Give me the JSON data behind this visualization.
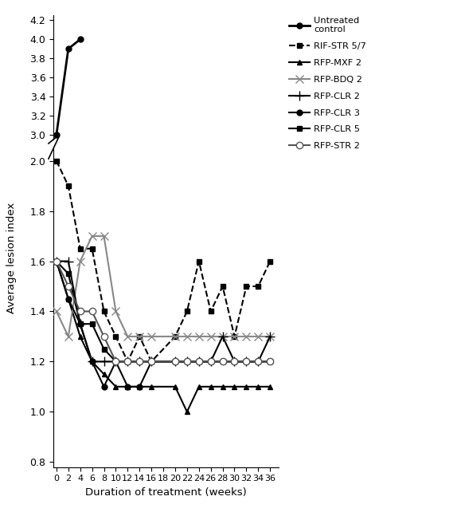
{
  "xlabel": "Duration of treatment (weeks)",
  "ylabel": "Average lesion index",
  "series": [
    {
      "label": "Untreated\ncontrol",
      "x": [
        0,
        2,
        4
      ],
      "y": [
        3.0,
        3.9,
        4.0
      ],
      "color": "#000000",
      "linestyle": "-",
      "linewidth": 2.0,
      "marker": "o",
      "markersize": 5,
      "markerfacecolor": "#000000",
      "markeredgecolor": "#000000",
      "zorder": 10
    },
    {
      "label": "RIF-STR 5/7",
      "x": [
        0,
        2,
        4,
        6,
        8,
        10,
        12,
        14,
        16,
        20,
        22,
        24,
        26,
        28,
        30,
        32,
        34,
        36
      ],
      "y": [
        2.0,
        1.9,
        1.65,
        1.65,
        1.4,
        1.3,
        1.2,
        1.3,
        1.2,
        1.3,
        1.4,
        1.6,
        1.4,
        1.5,
        1.3,
        1.5,
        1.5,
        1.6
      ],
      "color": "#000000",
      "linestyle": "--",
      "linewidth": 1.5,
      "marker": "s",
      "markersize": 5,
      "markerfacecolor": "#000000",
      "markeredgecolor": "#000000",
      "zorder": 5
    },
    {
      "label": "RFP-MXF 2",
      "x": [
        0,
        2,
        4,
        6,
        8,
        10,
        12,
        14,
        16,
        20,
        22,
        24,
        26,
        28,
        30,
        32,
        34,
        36
      ],
      "y": [
        1.6,
        1.45,
        1.3,
        1.2,
        1.15,
        1.1,
        1.1,
        1.1,
        1.1,
        1.1,
        1.0,
        1.1,
        1.1,
        1.1,
        1.1,
        1.1,
        1.1,
        1.1
      ],
      "color": "#000000",
      "linestyle": "-",
      "linewidth": 1.5,
      "marker": "^",
      "markersize": 5,
      "markerfacecolor": "#000000",
      "markeredgecolor": "#000000",
      "zorder": 5
    },
    {
      "label": "RFP-BDQ 2",
      "x": [
        0,
        2,
        4,
        6,
        8,
        10,
        12,
        14,
        16,
        20,
        22,
        24,
        26,
        28,
        30,
        32,
        34,
        36
      ],
      "y": [
        1.4,
        1.3,
        1.6,
        1.7,
        1.7,
        1.4,
        1.3,
        1.3,
        1.3,
        1.3,
        1.3,
        1.3,
        1.3,
        1.3,
        1.3,
        1.3,
        1.3,
        1.3
      ],
      "color": "#888888",
      "linestyle": "-",
      "linewidth": 1.5,
      "marker": "x",
      "markersize": 7,
      "markerfacecolor": "#888888",
      "markeredgecolor": "#888888",
      "zorder": 5
    },
    {
      "label": "RFP-CLR 2",
      "x": [
        0,
        2,
        4,
        6,
        8,
        10,
        12,
        14,
        16,
        20,
        22,
        24,
        26,
        28,
        30,
        32,
        34,
        36
      ],
      "y": [
        1.6,
        1.6,
        1.35,
        1.2,
        1.2,
        1.2,
        1.2,
        1.2,
        1.2,
        1.2,
        1.2,
        1.2,
        1.2,
        1.3,
        1.2,
        1.2,
        1.2,
        1.3
      ],
      "color": "#000000",
      "linestyle": "-",
      "linewidth": 1.5,
      "marker": "+",
      "markersize": 8,
      "markerfacecolor": "#000000",
      "markeredgecolor": "#000000",
      "zorder": 5
    },
    {
      "label": "RFP-CLR 3",
      "x": [
        0,
        2,
        4,
        6,
        8,
        10,
        12,
        14,
        16,
        20,
        22,
        24,
        26,
        28,
        30,
        32,
        34,
        36
      ],
      "y": [
        1.6,
        1.45,
        1.35,
        1.2,
        1.1,
        1.2,
        1.1,
        1.1,
        1.2,
        1.2,
        1.2,
        1.2,
        1.2,
        1.2,
        1.2,
        1.2,
        1.2,
        1.2
      ],
      "color": "#000000",
      "linestyle": "-",
      "linewidth": 1.5,
      "marker": "o",
      "markersize": 5,
      "markerfacecolor": "#000000",
      "markeredgecolor": "#000000",
      "zorder": 5
    },
    {
      "label": "RFP-CLR 5",
      "x": [
        0,
        2,
        4,
        6,
        8,
        10,
        12,
        14,
        16,
        20,
        22,
        24,
        26,
        28,
        30,
        32,
        34,
        36
      ],
      "y": [
        1.6,
        1.55,
        1.35,
        1.35,
        1.25,
        1.2,
        1.2,
        1.2,
        1.2,
        1.2,
        1.2,
        1.2,
        1.2,
        1.2,
        1.2,
        1.2,
        1.2,
        1.2
      ],
      "color": "#000000",
      "linestyle": "-",
      "linewidth": 1.5,
      "marker": "s",
      "markersize": 5,
      "markerfacecolor": "#000000",
      "markeredgecolor": "#000000",
      "zorder": 5
    },
    {
      "label": "RFP-STR 2",
      "x": [
        0,
        2,
        4,
        6,
        8,
        10,
        12,
        14,
        16,
        20,
        22,
        24,
        26,
        28,
        30,
        32,
        34,
        36
      ],
      "y": [
        1.6,
        1.5,
        1.4,
        1.4,
        1.3,
        1.2,
        1.2,
        1.2,
        1.2,
        1.2,
        1.2,
        1.2,
        1.2,
        1.2,
        1.2,
        1.2,
        1.2,
        1.2
      ],
      "color": "#555555",
      "linestyle": "-",
      "linewidth": 1.5,
      "marker": "o",
      "markersize": 6,
      "markerfacecolor": "#ffffff",
      "markeredgecolor": "#555555",
      "zorder": 5
    }
  ],
  "lower_yticks": [
    0.8,
    1.0,
    1.2,
    1.4,
    1.6,
    1.8,
    2.0
  ],
  "upper_yticks": [
    3.0,
    3.2,
    3.4,
    3.6,
    3.8,
    4.0,
    4.2
  ],
  "xticks": [
    0,
    2,
    4,
    6,
    8,
    10,
    12,
    14,
    16,
    18,
    20,
    22,
    24,
    26,
    28,
    30,
    32,
    34,
    36
  ],
  "lower_ylim": [
    0.78,
    2.05
  ],
  "upper_ylim": [
    2.95,
    4.25
  ],
  "xlim": [
    -0.5,
    37.5
  ]
}
